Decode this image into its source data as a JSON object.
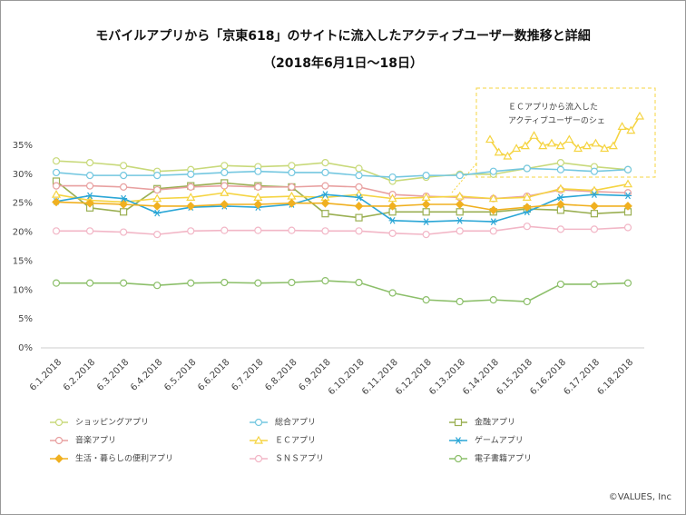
{
  "chart_data": {
    "type": "line",
    "title": "モバイルアプリから「京東618」のサイトに流入したアクティブユーザー数推移と詳細",
    "subtitle": "（2018年6月1日～18日）",
    "annotation": [
      "ＥＣアプリから流入した",
      "アクティブユーザーのシェ"
    ],
    "source": "©VALUES, Inc",
    "categories": [
      "6.1.2018",
      "6.2.2018",
      "6.3.2018",
      "6.4.2018",
      "6.5.2018",
      "6.6.2018",
      "6.7.2018",
      "6.8.2018",
      "6.9.2018",
      "6.10.2018",
      "6.11.2018",
      "6.12.2018",
      "6.13.2018",
      "6.14.2018",
      "6.15.2018",
      "6.16.2018",
      "6.17.2018",
      "6.18.2018"
    ],
    "ylim": [
      0,
      35
    ],
    "yticks": [
      {
        "value": 0,
        "label": "0%"
      },
      {
        "value": 5,
        "label": "5%"
      },
      {
        "value": 10,
        "label": "10%"
      },
      {
        "value": 15,
        "label": "15%"
      },
      {
        "value": 20,
        "label": "20%"
      },
      {
        "value": 25,
        "label": "25%"
      },
      {
        "value": 30,
        "label": "30%"
      },
      {
        "value": 35,
        "label": "35%"
      }
    ],
    "inset_series": 4,
    "series": [
      {
        "name": "ショッピングアプリ",
        "color": "#c8d97a",
        "marker": "circle",
        "values": [
          32.3,
          32.0,
          31.5,
          30.5,
          30.8,
          31.5,
          31.3,
          31.5,
          32.0,
          31.0,
          28.8,
          29.5,
          30.0,
          30.0,
          31.0,
          32.0,
          31.3,
          30.8
        ]
      },
      {
        "name": "総合アプリ",
        "color": "#74c7e0",
        "marker": "circle",
        "values": [
          30.3,
          29.8,
          29.8,
          29.8,
          30.0,
          30.3,
          30.5,
          30.3,
          30.3,
          29.8,
          29.5,
          29.8,
          29.8,
          30.5,
          31.0,
          30.8,
          30.5,
          30.8
        ]
      },
      {
        "name": "金融アプリ",
        "color": "#9aaf52",
        "marker": "square",
        "values": [
          28.8,
          24.2,
          23.5,
          27.5,
          28.0,
          28.5,
          28.0,
          27.8,
          23.2,
          22.5,
          23.5,
          23.5,
          23.5,
          23.5,
          24.0,
          23.8,
          23.2,
          23.5
        ]
      },
      {
        "name": "音楽アプリ",
        "color": "#e8a0a0",
        "marker": "circle",
        "values": [
          28.0,
          28.0,
          27.8,
          27.3,
          27.8,
          28.0,
          27.8,
          27.8,
          28.0,
          27.8,
          26.5,
          26.2,
          26.0,
          25.8,
          26.2,
          27.3,
          27.0,
          26.8
        ]
      },
      {
        "name": "ＥＣアプリ",
        "color": "#f5d442",
        "marker": "triangle",
        "values": [
          26.5,
          25.5,
          25.2,
          25.8,
          26.0,
          26.8,
          26.0,
          26.2,
          26.0,
          26.5,
          25.8,
          26.0,
          26.2,
          25.8,
          26.0,
          27.5,
          27.2,
          28.3
        ]
      },
      {
        "name": "ゲームアプリ",
        "color": "#2aa6d6",
        "marker": "star",
        "values": [
          25.3,
          26.3,
          25.8,
          23.3,
          24.3,
          24.5,
          24.3,
          24.8,
          26.5,
          26.0,
          22.0,
          21.8,
          22.0,
          21.8,
          23.5,
          26.0,
          26.5,
          26.3
        ]
      },
      {
        "name": "生活・暮らしの便利アプリ",
        "color": "#f0b020",
        "marker": "diamond",
        "values": [
          25.2,
          25.0,
          24.8,
          24.5,
          24.5,
          24.8,
          24.8,
          25.0,
          25.0,
          24.5,
          24.5,
          24.8,
          24.8,
          23.8,
          24.3,
          24.8,
          24.5,
          24.5
        ]
      },
      {
        "name": "ＳＮＳアプリ",
        "color": "#f2b6c6",
        "marker": "circle",
        "values": [
          20.2,
          20.2,
          20.0,
          19.6,
          20.2,
          20.3,
          20.3,
          20.3,
          20.2,
          20.2,
          19.8,
          19.6,
          20.2,
          20.2,
          21.0,
          20.5,
          20.5,
          20.8
        ]
      },
      {
        "name": "電子書籍アプリ",
        "color": "#8cbf6a",
        "marker": "circle",
        "values": [
          11.2,
          11.2,
          11.2,
          10.8,
          11.2,
          11.3,
          11.2,
          11.3,
          11.6,
          11.3,
          9.5,
          8.3,
          8.0,
          8.3,
          8.0,
          11.0,
          11.0,
          11.2
        ]
      }
    ]
  }
}
